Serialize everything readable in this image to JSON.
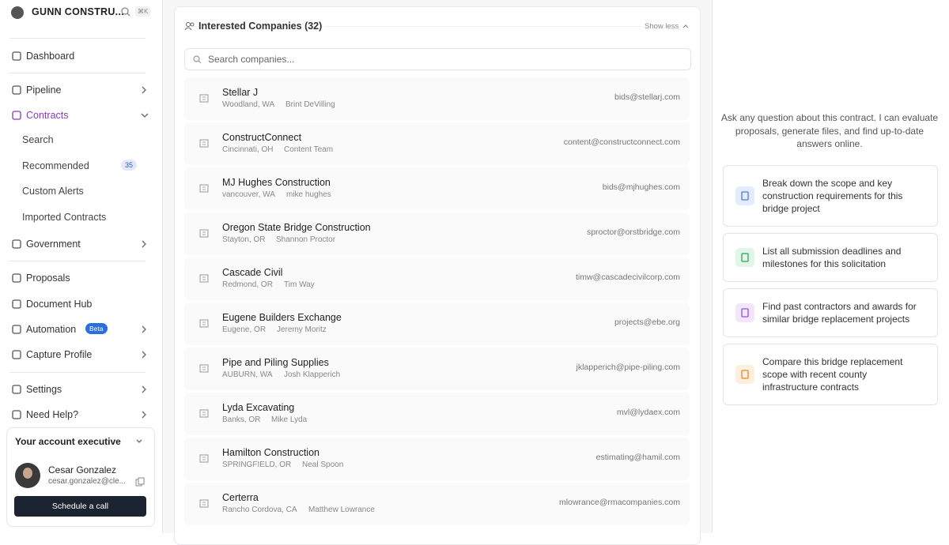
{
  "sidebar": {
    "org_name": "GUNN CONSTRU...",
    "shortcut": "⌘K",
    "nav": [
      {
        "label": "Dashboard"
      },
      {
        "label": "Pipeline"
      },
      {
        "label": "Contracts"
      },
      {
        "label": "Search"
      },
      {
        "label": "Recommended",
        "badge": 35
      },
      {
        "label": "Custom Alerts"
      },
      {
        "label": "Imported Contracts"
      },
      {
        "label": "Government"
      },
      {
        "label": "Proposals"
      },
      {
        "label": "Document Hub"
      },
      {
        "label": "Automation",
        "badge": "Beta"
      },
      {
        "label": "Capture Profile"
      },
      {
        "label": "Settings"
      },
      {
        "label": "Need Help?"
      }
    ],
    "account": {
      "title": "Your account executive",
      "name": "Cesar Gonzalez",
      "email": "cesar.gonzalez@cle...",
      "button": "Schedule a call"
    }
  },
  "companies": {
    "title": "Interested Companies (32)",
    "toggle": "Show less",
    "search_placeholder": "Search companies...",
    "rows": [
      {
        "name": "Stellar J",
        "location": "Woodland, WA",
        "contact": "Brint DeVilling",
        "email": "bids@stellarj.com"
      },
      {
        "name": "ConstructConnect",
        "location": "Cincinnati, OH",
        "contact": "Content Team",
        "email": "content@constructconnect.com"
      },
      {
        "name": "MJ Hughes Construction",
        "location": "vancouver, WA",
        "contact": "mike hughes",
        "email": "bids@mjhughes.com"
      },
      {
        "name": "Oregon State Bridge Construction",
        "location": "Stayton, OR",
        "contact": "Shannon Proctor",
        "email": "sproctor@orstbridge.com"
      },
      {
        "name": "Cascade Civil",
        "location": "Redmond, OR",
        "contact": "Tim Way",
        "email": "timw@cascadecivilcorp.com"
      },
      {
        "name": "Eugene Builders Exchange",
        "location": "Eugene, OR",
        "contact": "Jeremy Moritz",
        "email": "projects@ebe.org"
      },
      {
        "name": "Pipe and Piling Supplies",
        "location": "AUBURN, WA",
        "contact": "Josh Klapperich",
        "email": "jklapperich@pipe-piling.com"
      },
      {
        "name": "Lyda Excavating",
        "location": "Banks, OR",
        "contact": "Mike Lyda",
        "email": "mvl@lydaex.com"
      },
      {
        "name": "Hamilton Construction",
        "location": "SPRINGFIELD, OR",
        "contact": "Neal Spoon",
        "email": "estimating@hamil.com"
      },
      {
        "name": "Certerra",
        "location": "Rancho Cordova, CA",
        "contact": "Matthew Lowrance",
        "email": "mlowrance@rmacompanies.com"
      }
    ]
  },
  "assistant": {
    "intro": "Ask any question about this contract. I can evaluate proposals, generate files, and find up-to-date answers online.",
    "suggestions": [
      "Break down the scope and key construction requirements for this bridge project",
      "List all submission deadlines and milestones for this solicitation",
      "Find past contractors and awards for similar bridge replacement projects",
      "Compare this bridge replacement scope with recent county infrastructure contracts"
    ]
  }
}
